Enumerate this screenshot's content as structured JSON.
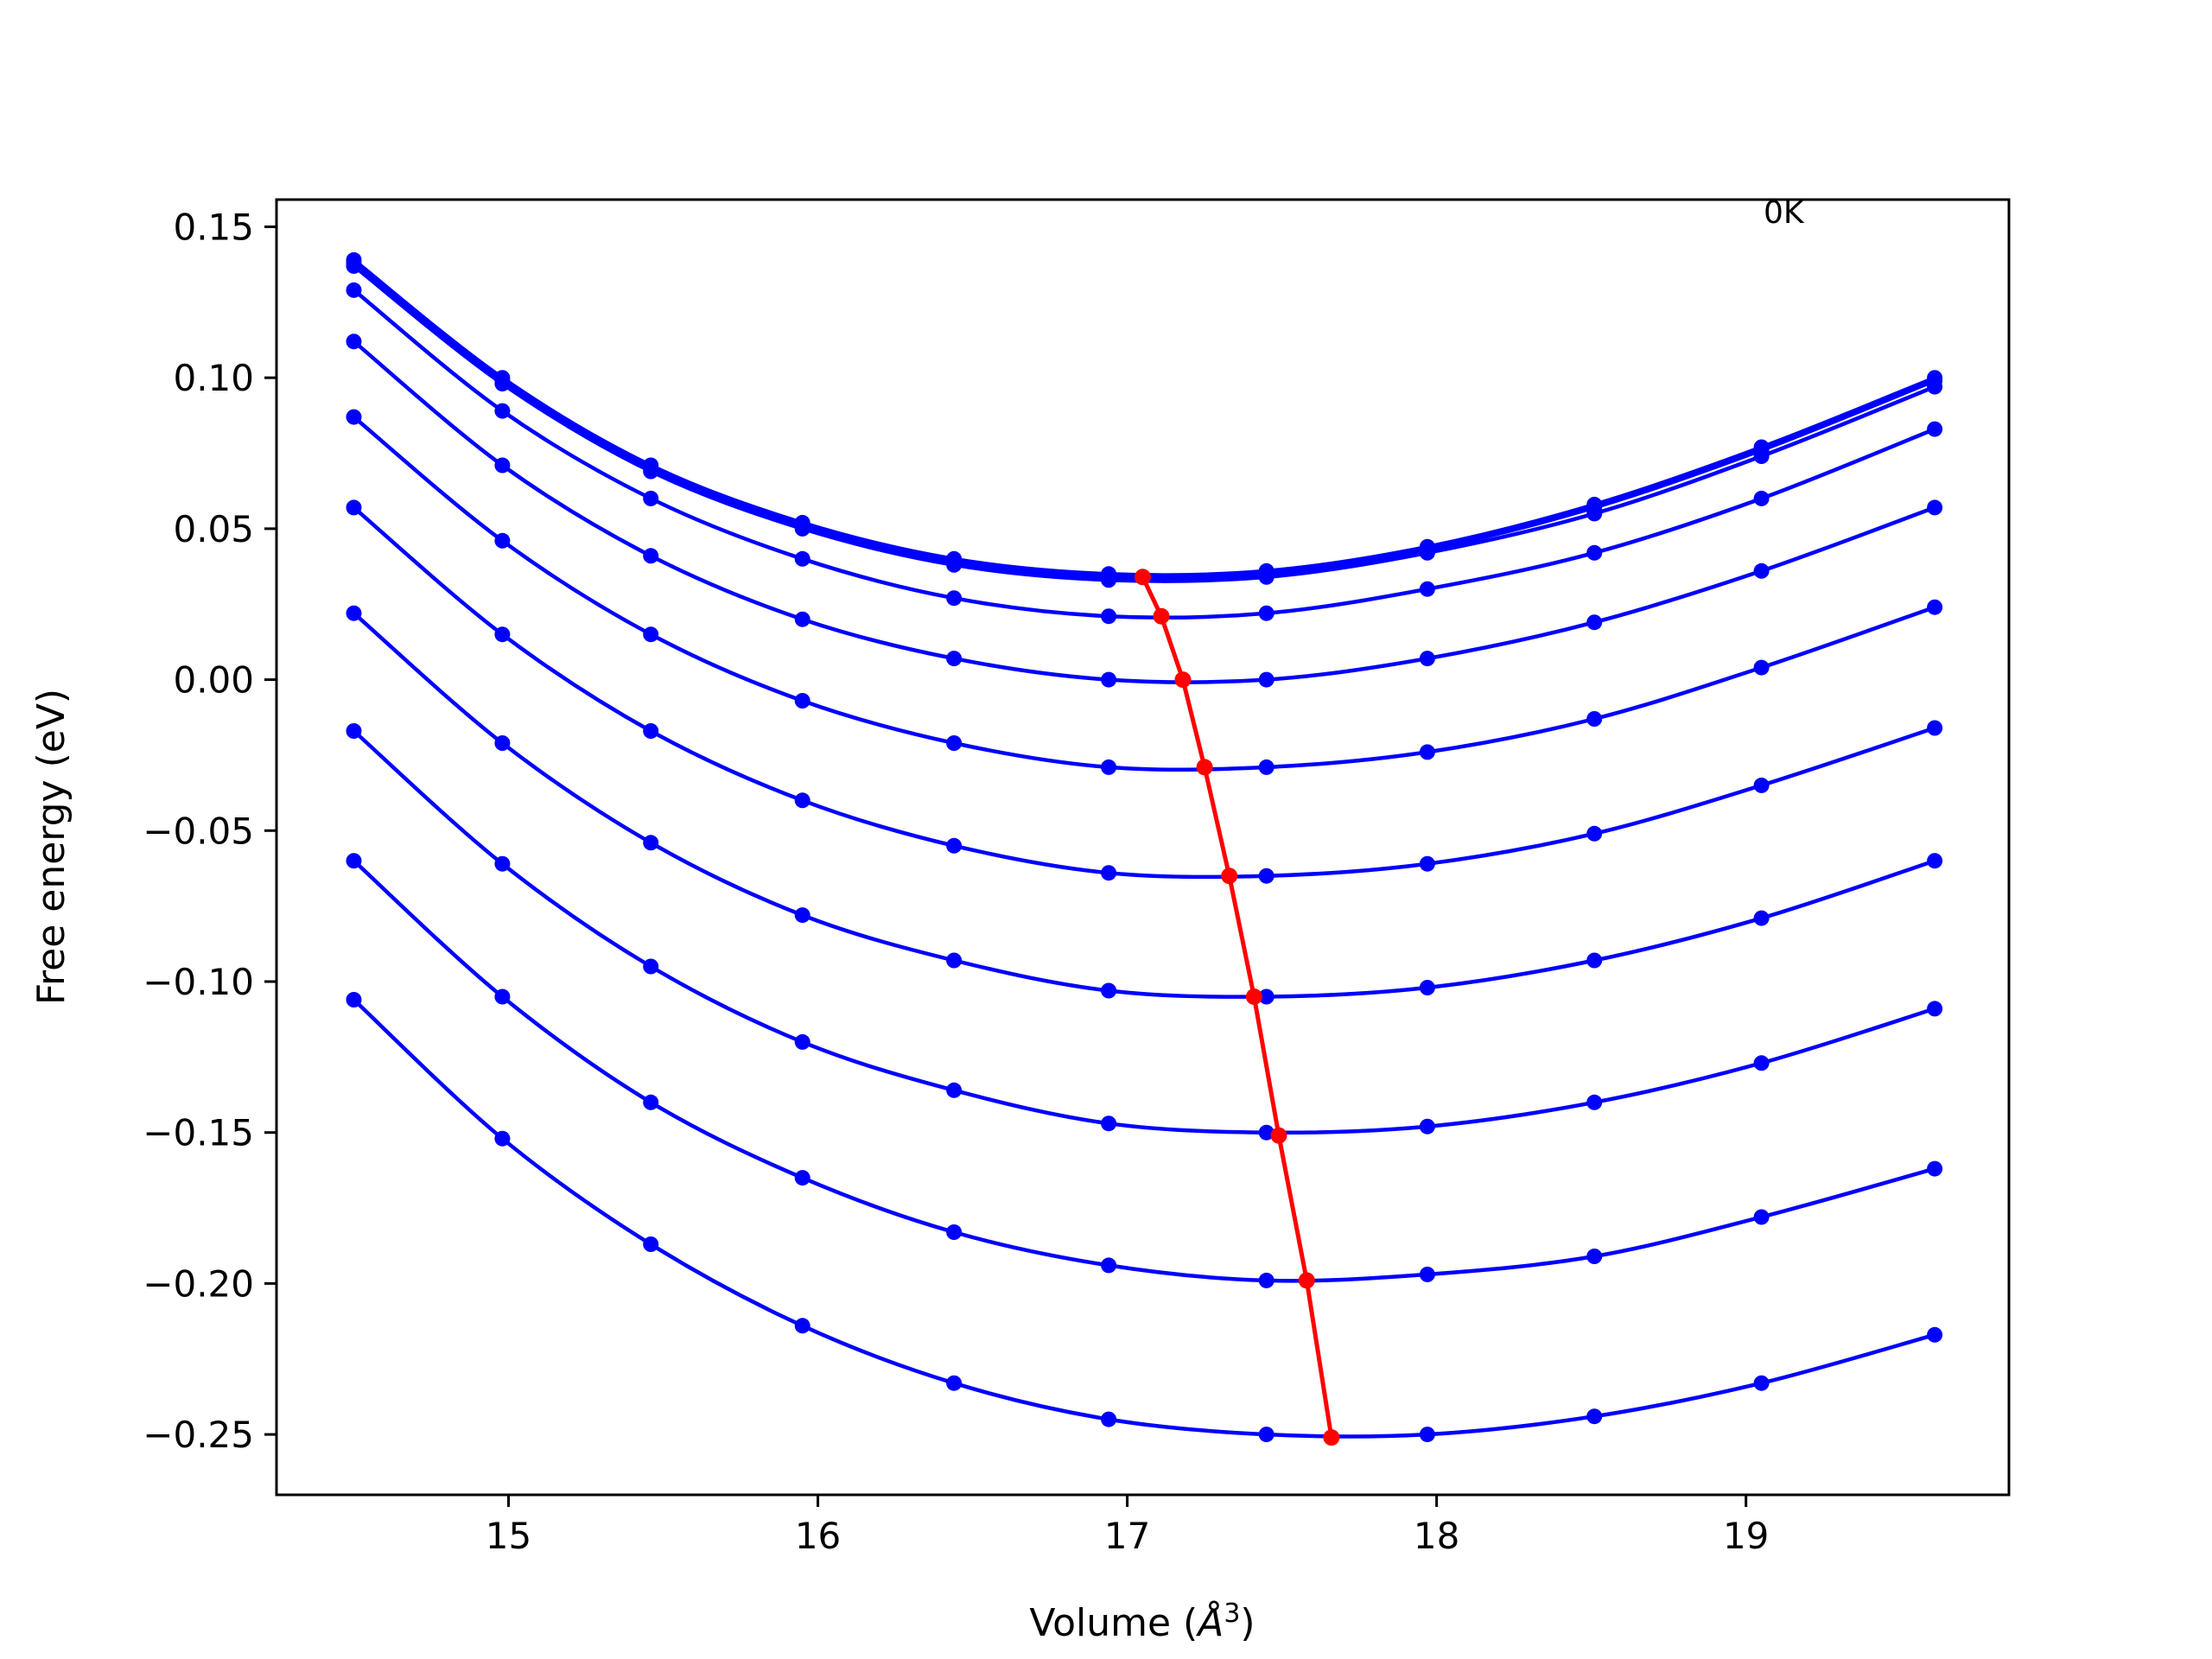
{
  "chart_data": {
    "type": "line",
    "title": "",
    "xlabel": "Volume (",
    "xlabel_symbol": "Å",
    "xlabel_exp": "3",
    "xlabel_close": ")",
    "ylabel": "Free energy (eV)",
    "xlim": [
      14.25,
      19.85
    ],
    "ylim": [
      -0.27,
      0.159
    ],
    "xticks": [
      15,
      16,
      17,
      18,
      19
    ],
    "xtick_labels": [
      "15",
      "16",
      "17",
      "18",
      "19"
    ],
    "yticks": [
      0.15,
      0.1,
      0.05,
      0.0,
      -0.05,
      -0.1,
      -0.15,
      -0.2,
      -0.25
    ],
    "ytick_labels": [
      "0.15",
      "0.10",
      "0.05",
      "0.00",
      "−0.05",
      "−0.10",
      "−0.15",
      "−0.20",
      "−0.25"
    ],
    "grid": false,
    "annotation": "0K",
    "colors": {
      "curves": "#0000ff",
      "minima": "#ff0000",
      "axes": "#000000"
    },
    "x": [
      14.5,
      14.98,
      15.46,
      15.95,
      16.44,
      16.94,
      17.45,
      17.97,
      18.51,
      19.05,
      19.61
    ],
    "series": [
      {
        "values": [
          0.139,
          0.1,
          0.071,
          0.052,
          0.04,
          0.035,
          0.036,
          0.044,
          0.058,
          0.077,
          0.1
        ]
      },
      {
        "values": [
          0.138,
          0.099,
          0.07,
          0.051,
          0.039,
          0.034,
          0.035,
          0.043,
          0.057,
          0.076,
          0.099
        ]
      },
      {
        "values": [
          0.137,
          0.098,
          0.069,
          0.05,
          0.038,
          0.033,
          0.034,
          0.042,
          0.055,
          0.074,
          0.097
        ]
      },
      {
        "values": [
          0.129,
          0.089,
          0.06,
          0.04,
          0.027,
          0.021,
          0.022,
          0.03,
          0.042,
          0.06,
          0.083
        ]
      },
      {
        "values": [
          0.112,
          0.071,
          0.041,
          0.02,
          0.007,
          0.0,
          0.0,
          0.007,
          0.019,
          0.036,
          0.057
        ]
      },
      {
        "values": [
          0.087,
          0.046,
          0.015,
          -0.007,
          -0.021,
          -0.029,
          -0.029,
          -0.024,
          -0.013,
          0.004,
          0.024
        ]
      },
      {
        "values": [
          0.057,
          0.015,
          -0.017,
          -0.04,
          -0.055,
          -0.064,
          -0.065,
          -0.061,
          -0.051,
          -0.035,
          -0.016
        ]
      },
      {
        "values": [
          0.022,
          -0.021,
          -0.054,
          -0.078,
          -0.093,
          -0.103,
          -0.105,
          -0.102,
          -0.093,
          -0.079,
          -0.06
        ]
      },
      {
        "values": [
          -0.017,
          -0.061,
          -0.095,
          -0.12,
          -0.136,
          -0.147,
          -0.15,
          -0.148,
          -0.14,
          -0.127,
          -0.109
        ]
      },
      {
        "values": [
          -0.06,
          -0.105,
          -0.14,
          -0.165,
          -0.183,
          -0.194,
          -0.199,
          -0.197,
          -0.191,
          -0.178,
          -0.162
        ]
      },
      {
        "values": [
          -0.106,
          -0.152,
          -0.187,
          -0.214,
          -0.233,
          -0.245,
          -0.25,
          -0.25,
          -0.244,
          -0.233,
          -0.217
        ]
      }
    ],
    "minima": {
      "x": [
        17.05,
        17.11,
        17.18,
        17.25,
        17.33,
        17.41,
        17.49,
        17.58,
        17.66
      ],
      "y": [
        0.034,
        0.021,
        0.0,
        -0.029,
        -0.065,
        -0.105,
        -0.151,
        -0.199,
        -0.251
      ]
    }
  }
}
